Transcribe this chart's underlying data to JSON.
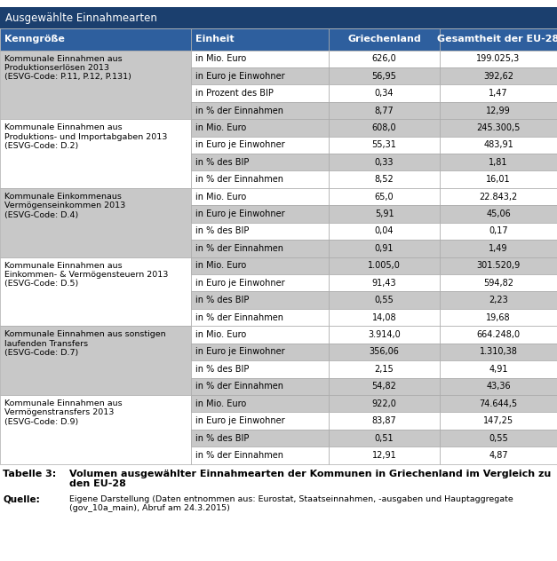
{
  "title_bar": "Ausgewählte Einnahmearten",
  "title_bar_bg": "#1B3F6E",
  "title_bar_color": "#FFFFFF",
  "header_bg": "#2E5F9E",
  "header_color": "#FFFFFF",
  "header_cols": [
    "Kenngröße",
    "Einheit",
    "Griechenland",
    "Gesamtheit der EU-28"
  ],
  "row_bg_A": "#C8C8C8",
  "row_bg_B": "#FFFFFF",
  "text_color": "#000000",
  "groups": [
    {
      "label": "Kommunale Einnahmen aus\nProduktionserlösen 2013\n(ESVG-Code: P.11, P.12, P.131)",
      "rows": [
        [
          "in Mio. Euro",
          "626,0",
          "199.025,3"
        ],
        [
          "in Euro je Einwohner",
          "56,95",
          "392,62"
        ],
        [
          "in Prozent des BIP",
          "0,34",
          "1,47"
        ],
        [
          "in % der Einnahmen",
          "8,77",
          "12,99"
        ]
      ]
    },
    {
      "label": "Kommunale Einnahmen aus\nProduktions- und Importabgaben 2013\n(ESVG-Code: D.2)",
      "rows": [
        [
          "in Mio. Euro",
          "608,0",
          "245.300,5"
        ],
        [
          "in Euro je Einwohner",
          "55,31",
          "483,91"
        ],
        [
          "in % des BIP",
          "0,33",
          "1,81"
        ],
        [
          "in % der Einnahmen",
          "8,52",
          "16,01"
        ]
      ]
    },
    {
      "label": "Kommunale Einkommenaus\nVermögenseinkommen 2013\n(ESVG-Code: D.4)",
      "rows": [
        [
          "in Mio. Euro",
          "65,0",
          "22.843,2"
        ],
        [
          "in Euro je Einwohner",
          "5,91",
          "45,06"
        ],
        [
          "in % des BIP",
          "0,04",
          "0,17"
        ],
        [
          "in % der Einnahmen",
          "0,91",
          "1,49"
        ]
      ]
    },
    {
      "label": "Kommunale Einnahmen aus\nEinkommen- & Vermögensteuern 2013\n(ESVG-Code: D.5)",
      "rows": [
        [
          "in Mio. Euro",
          "1.005,0",
          "301.520,9"
        ],
        [
          "in Euro je Einwohner",
          "91,43",
          "594,82"
        ],
        [
          "in % des BIP",
          "0,55",
          "2,23"
        ],
        [
          "in % der Einnahmen",
          "14,08",
          "19,68"
        ]
      ]
    },
    {
      "label": "Kommunale Einnahmen aus sonstigen\nlaufenden Transfers\n(ESVG-Code: D.7)",
      "rows": [
        [
          "in Mio. Euro",
          "3.914,0",
          "664.248,0"
        ],
        [
          "in Euro je Einwohner",
          "356,06",
          "1.310,38"
        ],
        [
          "in % des BIP",
          "2,15",
          "4,91"
        ],
        [
          "in % der Einnahmen",
          "54,82",
          "43,36"
        ]
      ]
    },
    {
      "label": "Kommunale Einnahmen aus\nVermögenstransfers 2013\n(ESVG-Code: D.9)",
      "rows": [
        [
          "in Mio. Euro",
          "922,0",
          "74.644,5"
        ],
        [
          "in Euro je Einwohner",
          "83,87",
          "147,25"
        ],
        [
          "in % des BIP",
          "0,51",
          "0,55"
        ],
        [
          "in % der Einnahmen",
          "12,91",
          "4,87"
        ]
      ]
    }
  ],
  "caption_label": "Tabelle 3:",
  "caption_text": "Volumen ausgewählter Einnahmearten der Kommunen in Griechenland im Vergleich zu\nden EU-28",
  "source_label": "Quelle:",
  "source_text": "Eigene Darstellung (Daten entnommen aus: Eurostat, Staatseinnahmen, -ausgaben und Hauptaggregate\n(gov_10a_main), Abruf am 24.3.2015)"
}
